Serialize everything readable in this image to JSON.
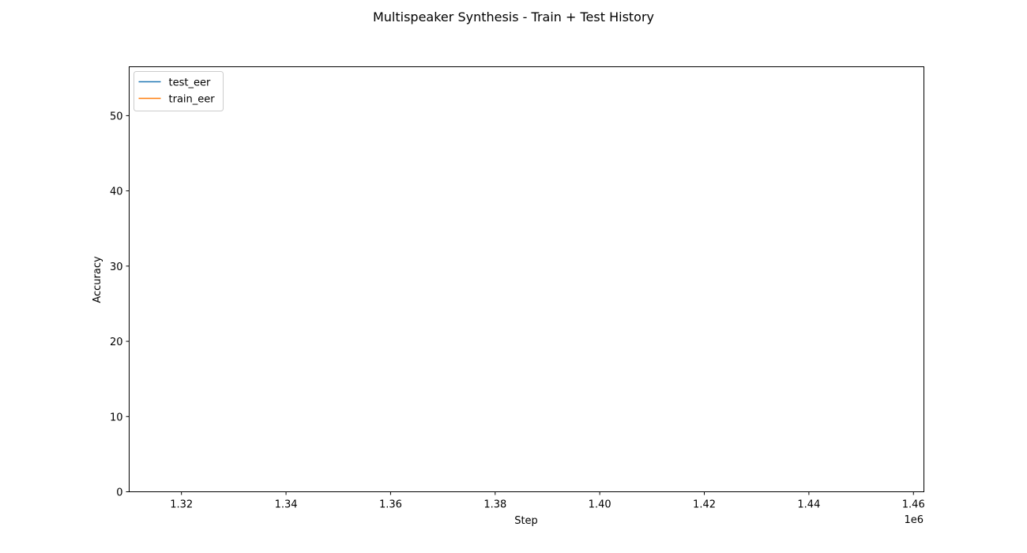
{
  "chart_data": {
    "type": "line",
    "title": "Multispeaker Synthesis - Train + Test History",
    "xlabel": "Step",
    "ylabel": "Accuracy",
    "x_offset_label": "1e6",
    "xlim": [
      1.31,
      1.462
    ],
    "ylim": [
      0,
      56.5
    ],
    "xticks": [
      1.32,
      1.34,
      1.36,
      1.38,
      1.4,
      1.42,
      1.44,
      1.46
    ],
    "xtick_labels": [
      "1.32",
      "1.34",
      "1.36",
      "1.38",
      "1.40",
      "1.42",
      "1.44",
      "1.46"
    ],
    "yticks": [
      0,
      10,
      20,
      30,
      40,
      50
    ],
    "ytick_labels": [
      "0",
      "10",
      "20",
      "30",
      "40",
      "50"
    ],
    "grid": false,
    "legend_position": "top-left",
    "series": [
      {
        "name": "test_eer",
        "color": "#1f77b4",
        "x": [],
        "y": []
      },
      {
        "name": "train_eer",
        "color": "#ff7f0e",
        "x": [],
        "y": []
      }
    ]
  }
}
